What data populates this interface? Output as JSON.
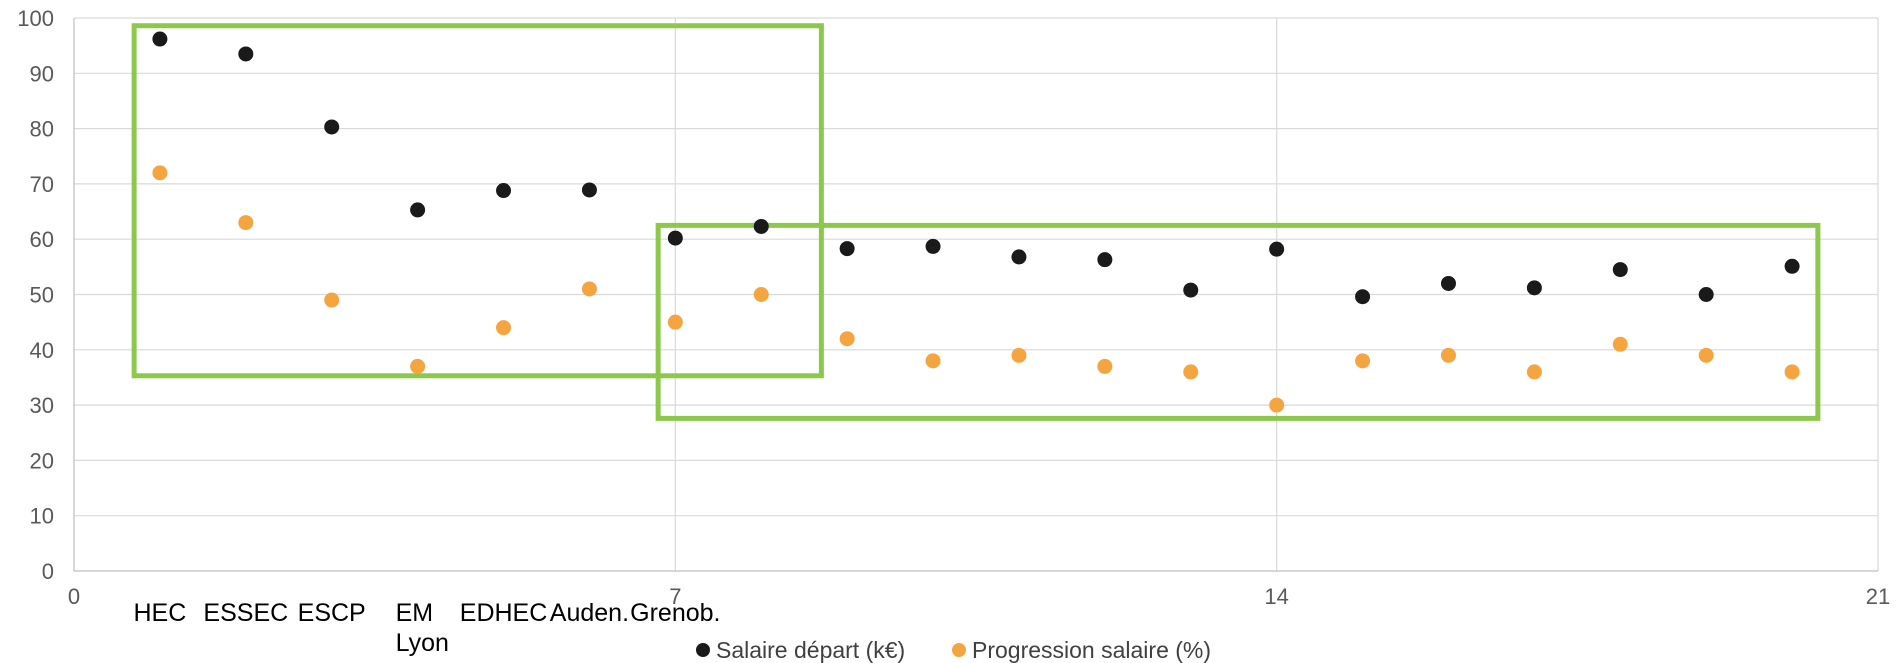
{
  "chart_data": {
    "type": "scatter",
    "xlim": [
      0,
      21
    ],
    "ylim": [
      0,
      100
    ],
    "x_ticks": [
      "0",
      "7",
      "14",
      "21"
    ],
    "y_ticks": [
      "0",
      "10",
      "20",
      "30",
      "40",
      "50",
      "60",
      "70",
      "80",
      "90",
      "100"
    ],
    "grid": true,
    "legend_position": "bottom",
    "categories": [
      {
        "x": 1,
        "label": "HEC"
      },
      {
        "x": 2,
        "label": "ESSEC"
      },
      {
        "x": 3,
        "label": "ESCP"
      },
      {
        "x": 4,
        "label": "EM\nLyon"
      },
      {
        "x": 5,
        "label": "EDHEC"
      },
      {
        "x": 6,
        "label": "Auden."
      },
      {
        "x": 7,
        "label": "Grenob."
      }
    ],
    "series": [
      {
        "name": "Salaire départ (k€)",
        "color": "#1a1a1a",
        "x": [
          1,
          2,
          3,
          4,
          5,
          6,
          7,
          8,
          9,
          10,
          11,
          12,
          13,
          14,
          15,
          16,
          17,
          18,
          19,
          20
        ],
        "y": [
          96.2,
          93.5,
          80.3,
          65.3,
          68.8,
          68.9,
          60.2,
          62.3,
          58.3,
          58.7,
          56.8,
          56.3,
          50.8,
          58.2,
          49.6,
          52.0,
          51.2,
          54.5,
          50.0,
          55.1
        ]
      },
      {
        "name": "Progression salaire (%)",
        "color": "#f5a540",
        "x": [
          1,
          2,
          3,
          4,
          5,
          6,
          7,
          8,
          9,
          10,
          11,
          12,
          13,
          14,
          15,
          16,
          17,
          18,
          19,
          20
        ],
        "y": [
          72,
          63,
          49,
          37,
          44,
          51,
          45,
          50,
          42,
          38,
          39,
          37,
          36,
          30,
          38,
          39,
          36,
          41,
          39,
          36
        ]
      }
    ],
    "highlights": [
      {
        "x_range": [
          0.7,
          8.7
        ],
        "y_range": [
          35.3,
          98.6
        ],
        "color": "#8cc84b"
      },
      {
        "x_range": [
          6.8,
          20.3
        ],
        "y_range": [
          27.6,
          62.5
        ],
        "color": "#8cc84b"
      }
    ]
  }
}
